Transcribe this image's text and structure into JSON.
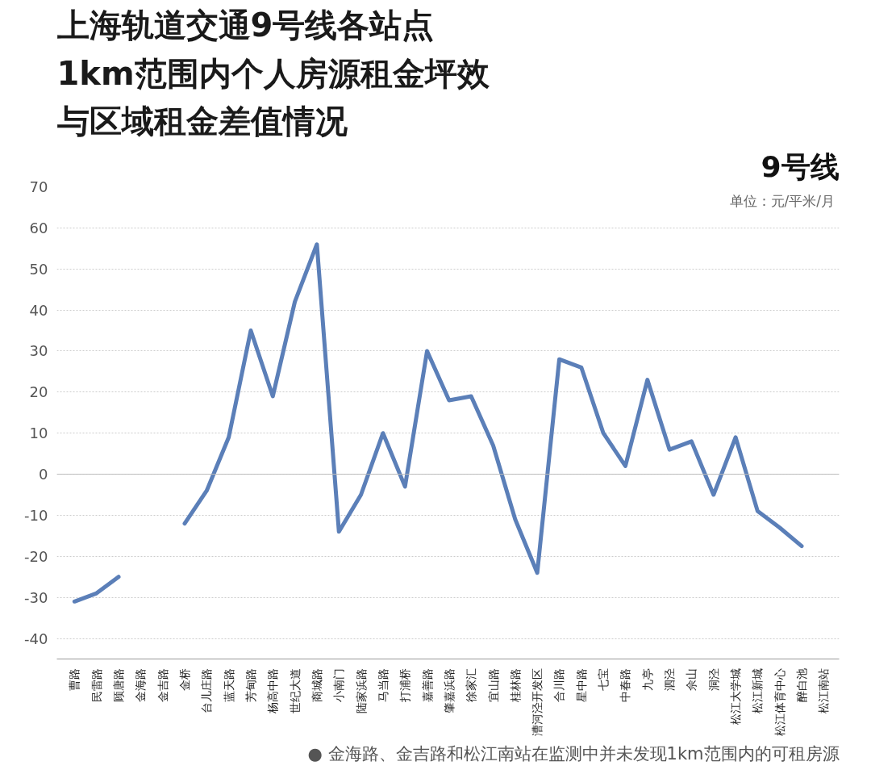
{
  "chart_data": {
    "type": "line",
    "title": "上海轨道交通9号线各站点1km范围内个人房源租金坪效与区域租金差值情况",
    "categories": [
      "曹路",
      "民雷路",
      "顾唐路",
      "金海路",
      "金吉路",
      "金桥",
      "台儿庄路",
      "蓝天路",
      "芳甸路",
      "杨高中路",
      "世纪大道",
      "商城路",
      "小南门",
      "陆家浜路",
      "马当路",
      "打浦桥",
      "嘉善路",
      "肇嘉浜路",
      "徐家汇",
      "宜山路",
      "桂林路",
      "漕河泾开发区",
      "合川路",
      "星中路",
      "七宝",
      "中春路",
      "九亭",
      "泗泾",
      "佘山",
      "洞泾",
      "松江大学城",
      "松江新城",
      "松江体育中心",
      "醉白池",
      "松江南站"
    ],
    "series": [
      {
        "color": "#5b7fb8",
        "values": [
          -31,
          -29,
          -25,
          null,
          null,
          -12,
          -4,
          9,
          35,
          19,
          42,
          56,
          -14,
          -5,
          10,
          -3,
          30,
          18,
          19,
          7,
          -11,
          -24,
          28,
          26,
          10,
          2,
          23,
          6,
          8,
          -5,
          9,
          -9,
          -13,
          -17.5,
          null
        ]
      }
    ],
    "ylim": [
      -45,
      70
    ],
    "yticks": [
      -40,
      -30,
      -20,
      -10,
      0,
      10,
      20,
      30,
      40,
      50,
      60,
      70
    ],
    "grid": "y",
    "line_style": "solid",
    "marker": "none",
    "annotations": [
      "9号线",
      "单位：元/平米/月",
      "● 金海路、金吉路和松江南站在监测中并未发现1km范围内的可租房源"
    ]
  }
}
